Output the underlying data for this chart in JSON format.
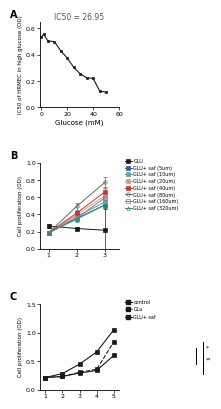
{
  "panel_a": {
    "title": "IC50 = 26.95",
    "xlabel": "Glucose (mM)",
    "ylabel": "IC50 of HRMEC in high glucose (OD)",
    "x": [
      0,
      2,
      5,
      10,
      15,
      20,
      25,
      30,
      35,
      40,
      45,
      50
    ],
    "y": [
      0.535,
      0.555,
      0.505,
      0.5,
      0.43,
      0.375,
      0.305,
      0.255,
      0.225,
      0.22,
      0.125,
      0.115
    ],
    "ylim": [
      0.0,
      0.65
    ],
    "xlim": [
      -1,
      60
    ],
    "yticks": [
      0.0,
      0.2,
      0.4,
      0.6
    ],
    "xticks": [
      0,
      20,
      40,
      60
    ]
  },
  "panel_b": {
    "ylabel": "Cell proliferation (OD)",
    "ylim": [
      0.0,
      1.0
    ],
    "xlim": [
      0.7,
      3.5
    ],
    "yticks": [
      0.0,
      0.2,
      0.4,
      0.6,
      0.8,
      1.0
    ],
    "xticks": [
      1,
      2,
      3
    ],
    "series": [
      {
        "label": "GLU",
        "x": [
          1,
          2,
          3
        ],
        "y": [
          0.265,
          0.235,
          0.215
        ],
        "yerr": [
          0.02,
          0.02,
          0.25
        ],
        "color": "#1a1a1a",
        "marker": "s",
        "mfc": "full",
        "linestyle": "-"
      },
      {
        "label": "GLU+ saf (5um)",
        "x": [
          1,
          2,
          3
        ],
        "y": [
          0.185,
          0.355,
          0.51
        ],
        "yerr": [
          0.02,
          0.03,
          0.03
        ],
        "color": "#3955a3",
        "marker": "s",
        "mfc": "full",
        "linestyle": "-"
      },
      {
        "label": "GLU+ saf (10um)",
        "x": [
          1,
          2,
          3
        ],
        "y": [
          0.185,
          0.375,
          0.545
        ],
        "yerr": [
          0.02,
          0.03,
          0.03
        ],
        "color": "#5ba890",
        "marker": "s",
        "mfc": "full",
        "linestyle": "-"
      },
      {
        "label": "GLU+ saf (20um)",
        "x": [
          1,
          2,
          3
        ],
        "y": [
          0.185,
          0.395,
          0.62
        ],
        "yerr": [
          0.02,
          0.03,
          0.03
        ],
        "color": "#e8937a",
        "marker": "s",
        "mfc": "full",
        "linestyle": "-"
      },
      {
        "label": "GLU+ saf (40um)",
        "x": [
          1,
          2,
          3
        ],
        "y": [
          0.185,
          0.415,
          0.665
        ],
        "yerr": [
          0.02,
          0.03,
          0.04
        ],
        "color": "#c0392b",
        "marker": "s",
        "mfc": "full",
        "linestyle": "-"
      },
      {
        "label": "GLU+ saf (80um)",
        "x": [
          1,
          2,
          3
        ],
        "y": [
          0.185,
          0.495,
          0.775
        ],
        "yerr": [
          0.02,
          0.04,
          0.06
        ],
        "color": "#666666",
        "marker": "o",
        "mfc": "none",
        "linestyle": "-"
      },
      {
        "label": "GLU+ saf (160um)",
        "x": [
          1,
          2,
          3
        ],
        "y": [
          0.185,
          0.355,
          0.595
        ],
        "yerr": [
          0.02,
          0.03,
          0.03
        ],
        "color": "#6080c0",
        "marker": "s",
        "mfc": "none",
        "linestyle": "-"
      },
      {
        "label": "GLU+ saf (320um)",
        "x": [
          1,
          2,
          3
        ],
        "y": [
          0.185,
          0.345,
          0.51
        ],
        "yerr": [
          0.02,
          0.03,
          0.03
        ],
        "color": "#3a9060",
        "marker": "^",
        "mfc": "none",
        "linestyle": "-"
      }
    ]
  },
  "panel_c": {
    "ylabel": "Cell proliferation (OD)",
    "ylim": [
      0.0,
      1.5
    ],
    "xlim": [
      0.7,
      5.3
    ],
    "yticks": [
      0.0,
      0.5,
      1.0,
      1.5
    ],
    "xticks": [
      1,
      2,
      3,
      4,
      5
    ],
    "series": [
      {
        "label": "control",
        "x": [
          1,
          2,
          3,
          4,
          5
        ],
        "y": [
          0.215,
          0.285,
          0.45,
          0.665,
          1.055
        ],
        "color": "#1a1a1a",
        "marker": "s",
        "linestyle": "-"
      },
      {
        "label": "GLu",
        "x": [
          1,
          2,
          3,
          4,
          5
        ],
        "y": [
          0.215,
          0.235,
          0.305,
          0.36,
          0.845
        ],
        "color": "#1a1a1a",
        "marker": "s",
        "linestyle": "--"
      },
      {
        "label": "GLU+ saf",
        "x": [
          1,
          2,
          3,
          4,
          5
        ],
        "y": [
          0.215,
          0.235,
          0.295,
          0.34,
          0.605
        ],
        "color": "#1a1a1a",
        "marker": "s",
        "linestyle": "-"
      }
    ]
  },
  "background_color": "#ffffff"
}
